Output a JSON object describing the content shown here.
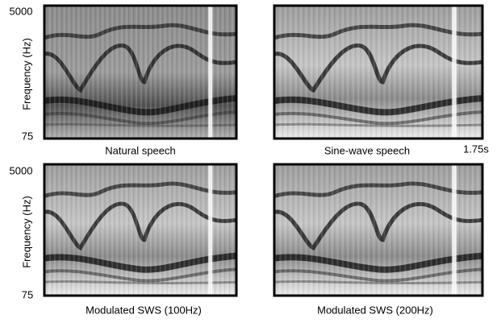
{
  "panels": [
    {
      "caption": "Natural speech",
      "y_axis": {
        "label": "Frequency (Hz)",
        "top": "5000",
        "bottom": "75"
      }
    },
    {
      "caption": "Sine-wave speech",
      "time_label": "1.75s"
    },
    {
      "caption": "Modulated SWS (100Hz)",
      "y_axis": {
        "label": "Frequency (Hz)",
        "top": "5000",
        "bottom": "75"
      }
    },
    {
      "caption": "Modulated SWS (200Hz)"
    }
  ]
}
